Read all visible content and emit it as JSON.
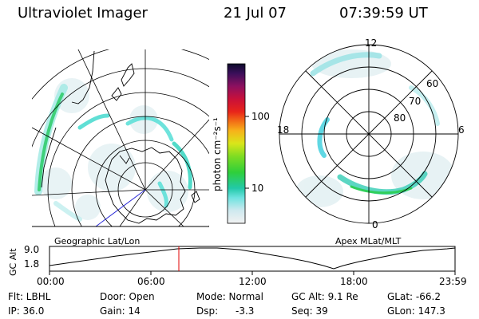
{
  "header": {
    "title": "Ultraviolet Imager",
    "date": "21 Jul 07",
    "time": "07:39:59 UT"
  },
  "colorbar": {
    "label": "photon cm⁻²s⁻¹",
    "ticks": [
      "100",
      "10"
    ]
  },
  "left_panel": {
    "caption": "Geographic Lat/Lon"
  },
  "right_panel": {
    "caption": "Apex MLat/MLT",
    "mlt_labels": {
      "top": "12",
      "bottom": "0",
      "left": "18",
      "right": "6"
    },
    "lat_labels": [
      "60",
      "70",
      "80"
    ]
  },
  "altitude_plot": {
    "ylabel": "GC Alt",
    "yticks": [
      "9.0",
      "1.8"
    ],
    "xticks": [
      "00:00",
      "06:00",
      "12:00",
      "18:00",
      "23:59"
    ],
    "current_time_hours": 7.67
  },
  "info": {
    "flt": "Flt: LBHL",
    "ip": "IP: 36.0",
    "door": "Door: Open",
    "gain": "Gain: 14",
    "mode": "Mode: Normal",
    "dsp_label": "Dsp:",
    "dsp_value": "-3.3",
    "gc_alt": "GC Alt: 9.1 Re",
    "seq": "Seq: 39",
    "glat": "GLat: -66.2",
    "glon": "GLon: 147.3"
  }
}
